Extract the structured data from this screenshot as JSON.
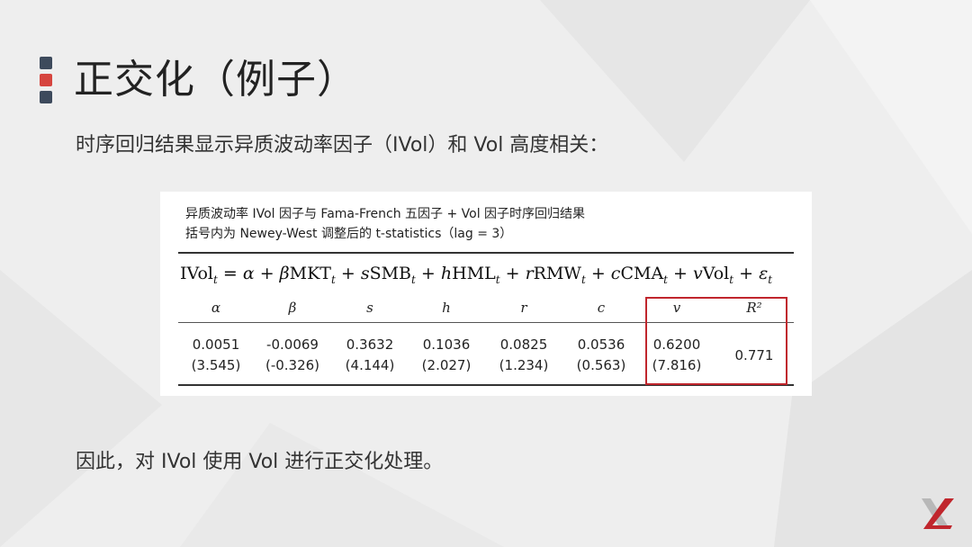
{
  "title": "正交化（例子）",
  "subtitle": "时序回归结果显示异质波动率因子（IVol）和 Vol 高度相关：",
  "conclusion": "因此，对 IVol 使用 Vol 进行正交化处理。",
  "colors": {
    "accent_red": "#c0262d",
    "accent_navy": "#3d4a5c",
    "highlight_box": "#c0262d"
  },
  "table": {
    "caption_line1": "异质波动率 IVol 因子与 Fama-French 五因子 + Vol 因子时序回归结果",
    "caption_line2": "括号内为 Newey-West 调整后的 t-statistics（lag = 3）",
    "equation": "IVol_t = α + βMKT_t + sSMB_t + hHML_t + rRMW_t + cCMA_t + vVol_t + ε_t",
    "headers": [
      "α",
      "β",
      "s",
      "h",
      "r",
      "c",
      "v",
      "R²"
    ],
    "coefficients": [
      "0.0051",
      "-0.0069",
      "0.3632",
      "0.1036",
      "0.0825",
      "0.0536",
      "0.6200"
    ],
    "t_stats": [
      "(3.545)",
      "(-0.326)",
      "(4.144)",
      "(2.027)",
      "(1.234)",
      "(0.563)",
      "(7.816)"
    ],
    "r_squared": "0.771",
    "highlighted_columns": [
      "v",
      "R²"
    ]
  },
  "logo_icon": "x-logo-icon"
}
